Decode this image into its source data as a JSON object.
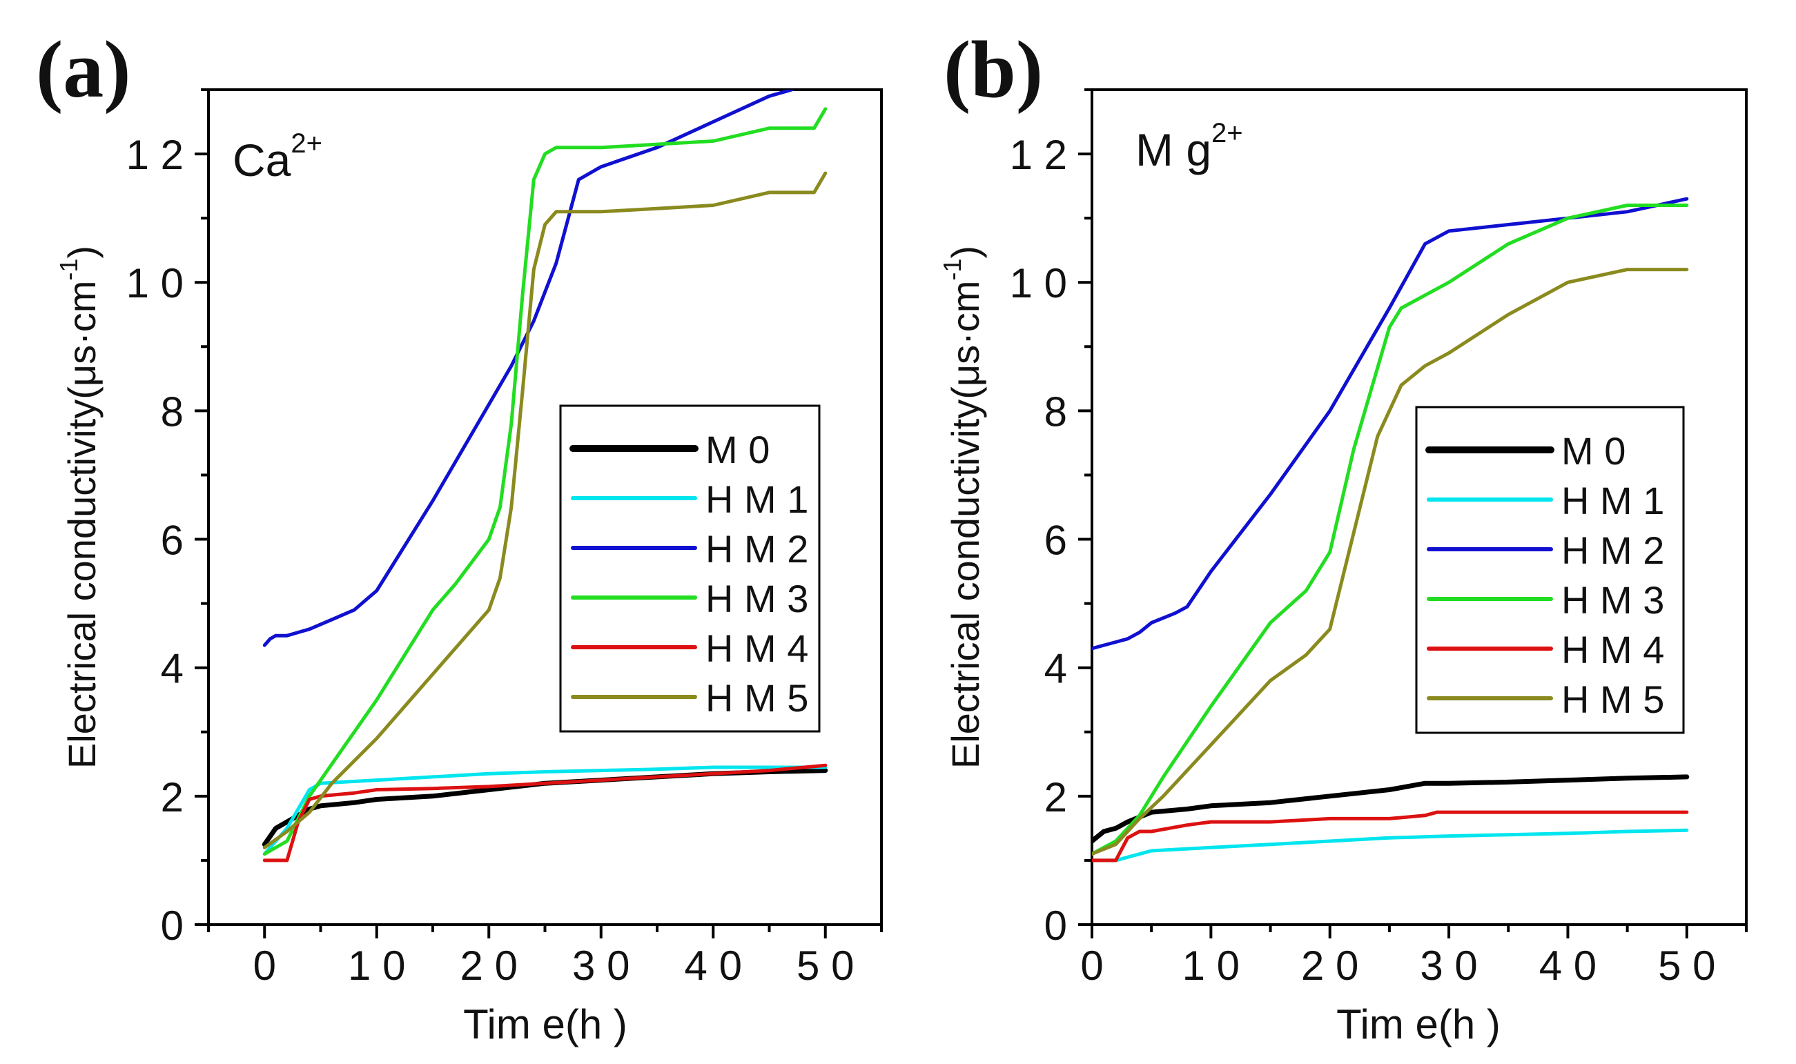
{
  "chart_data": [
    {
      "type": "line",
      "panel_label": "(a)",
      "ion_label": "Ca",
      "ion_superscript": "2+",
      "xlabel": "Tim e(h )",
      "ylabel": "Electrical conductivity(μs·cm",
      "ylabel_superscript": "-1",
      "ylabel_suffix": ")",
      "xlim": [
        -5,
        55
      ],
      "ylim": [
        0,
        13
      ],
      "xticks": [
        0,
        10,
        20,
        30,
        40,
        50
      ],
      "xtick_labels": [
        "0",
        "1 0",
        "2 0",
        "3 0",
        "4 0",
        "5 0"
      ],
      "yticks": [
        0,
        2,
        4,
        6,
        8,
        10,
        12
      ],
      "ytick_labels": [
        "0",
        "2",
        "4",
        "6",
        "8",
        "1 0",
        "1 2"
      ],
      "legend_position": "center-right",
      "series": [
        {
          "name": "M 0",
          "color": "#000000",
          "x": [
            0,
            1,
            2,
            3,
            4,
            5,
            8,
            10,
            15,
            20,
            25,
            30,
            35,
            40,
            45,
            50
          ],
          "y": [
            1.25,
            1.5,
            1.6,
            1.7,
            1.8,
            1.85,
            1.9,
            1.95,
            2.0,
            2.1,
            2.2,
            2.25,
            2.3,
            2.35,
            2.38,
            2.4
          ]
        },
        {
          "name": "H M 1",
          "color": "#00e5ee",
          "x": [
            0,
            1,
            2,
            3,
            4,
            5,
            10,
            15,
            20,
            25,
            30,
            35,
            40,
            45,
            50
          ],
          "y": [
            1.1,
            1.3,
            1.5,
            1.8,
            2.1,
            2.2,
            2.25,
            2.3,
            2.35,
            2.38,
            2.4,
            2.42,
            2.45,
            2.45,
            2.45
          ]
        },
        {
          "name": "H M 2",
          "color": "#1010d0",
          "x": [
            0,
            0.5,
            1,
            2,
            3,
            4,
            6,
            8,
            10,
            15,
            20,
            22,
            24,
            26,
            28,
            30,
            35,
            40,
            45,
            47
          ],
          "y": [
            4.35,
            4.45,
            4.5,
            4.5,
            4.55,
            4.6,
            4.75,
            4.9,
            5.2,
            6.6,
            8.1,
            8.7,
            9.4,
            10.3,
            11.6,
            11.8,
            12.1,
            12.5,
            12.9,
            13.0
          ]
        },
        {
          "name": "H M 3",
          "color": "#22dd22",
          "x": [
            0,
            2,
            4,
            6,
            10,
            15,
            17,
            20,
            21,
            22,
            23,
            24,
            25,
            26,
            30,
            35,
            40,
            45,
            49,
            50
          ],
          "y": [
            1.1,
            1.3,
            2.0,
            2.5,
            3.5,
            4.9,
            5.3,
            6.0,
            6.5,
            7.8,
            9.8,
            11.6,
            12.0,
            12.1,
            12.1,
            12.15,
            12.2,
            12.4,
            12.4,
            12.7
          ]
        },
        {
          "name": "H M 4",
          "color": "#dd1111",
          "x": [
            0,
            1,
            2,
            3,
            4,
            5,
            8,
            10,
            15,
            20,
            25,
            30,
            35,
            40,
            45,
            50
          ],
          "y": [
            1.0,
            1.0,
            1.0,
            1.6,
            1.95,
            2.0,
            2.05,
            2.1,
            2.12,
            2.15,
            2.2,
            2.25,
            2.3,
            2.35,
            2.4,
            2.48
          ]
        },
        {
          "name": "H M 5",
          "color": "#8a8a1f",
          "x": [
            0,
            2,
            4,
            6,
            10,
            15,
            20,
            21,
            22,
            23,
            24,
            25,
            26,
            30,
            35,
            40,
            45,
            49,
            50
          ],
          "y": [
            1.2,
            1.45,
            1.75,
            2.2,
            2.9,
            3.9,
            4.9,
            5.4,
            6.5,
            8.3,
            10.2,
            10.9,
            11.1,
            11.1,
            11.15,
            11.2,
            11.4,
            11.4,
            11.7
          ]
        }
      ]
    },
    {
      "type": "line",
      "panel_label": "(b)",
      "ion_label": "M g",
      "ion_superscript": "2+",
      "xlabel": "Tim e(h )",
      "ylabel": "Electrical conductivity(μs·cm",
      "ylabel_superscript": "-1",
      "ylabel_suffix": ")",
      "xlim": [
        0,
        55
      ],
      "ylim": [
        0,
        13
      ],
      "xticks": [
        0,
        10,
        20,
        30,
        40,
        50
      ],
      "xtick_labels": [
        "0",
        "1 0",
        "2 0",
        "3 0",
        "4 0",
        "5 0"
      ],
      "yticks": [
        0,
        2,
        4,
        6,
        8,
        10,
        12
      ],
      "ytick_labels": [
        "0",
        "2",
        "4",
        "6",
        "8",
        "1 0",
        "1 2"
      ],
      "legend_position": "center-right",
      "series": [
        {
          "name": "M 0",
          "color": "#000000",
          "x": [
            0,
            1,
            2,
            3,
            5,
            8,
            10,
            15,
            20,
            25,
            28,
            30,
            35,
            40,
            45,
            50
          ],
          "y": [
            1.3,
            1.45,
            1.5,
            1.6,
            1.75,
            1.8,
            1.85,
            1.9,
            2.0,
            2.1,
            2.2,
            2.2,
            2.22,
            2.25,
            2.28,
            2.3
          ]
        },
        {
          "name": "H M 1",
          "color": "#00e5ee",
          "x": [
            0,
            1,
            2,
            3,
            5,
            10,
            15,
            20,
            25,
            30,
            35,
            40,
            45,
            50
          ],
          "y": [
            1.0,
            1.0,
            1.0,
            1.05,
            1.15,
            1.2,
            1.25,
            1.3,
            1.35,
            1.38,
            1.4,
            1.42,
            1.45,
            1.47
          ]
        },
        {
          "name": "H M 2",
          "color": "#1010d0",
          "x": [
            0,
            1,
            2,
            3,
            4,
            5,
            7,
            8,
            10,
            15,
            20,
            25,
            28,
            30,
            35,
            40,
            45,
            50
          ],
          "y": [
            4.3,
            4.35,
            4.4,
            4.45,
            4.55,
            4.7,
            4.85,
            4.95,
            5.5,
            6.7,
            8.0,
            9.6,
            10.6,
            10.8,
            10.9,
            11.0,
            11.1,
            11.3
          ]
        },
        {
          "name": "H M 3",
          "color": "#22dd22",
          "x": [
            0,
            2,
            4,
            6,
            10,
            15,
            18,
            20,
            22,
            25,
            26,
            28,
            30,
            35,
            40,
            45,
            50
          ],
          "y": [
            1.1,
            1.3,
            1.7,
            2.3,
            3.4,
            4.7,
            5.2,
            5.8,
            7.4,
            9.3,
            9.6,
            9.8,
            10.0,
            10.6,
            11.0,
            11.2,
            11.2
          ]
        },
        {
          "name": "H M 4",
          "color": "#dd1111",
          "x": [
            0,
            1,
            2,
            3,
            4,
            5,
            8,
            10,
            15,
            20,
            25,
            28,
            29,
            30,
            35,
            40,
            45,
            50
          ],
          "y": [
            1.0,
            1.0,
            1.0,
            1.35,
            1.45,
            1.45,
            1.55,
            1.6,
            1.6,
            1.65,
            1.65,
            1.7,
            1.75,
            1.75,
            1.75,
            1.75,
            1.75,
            1.75
          ]
        },
        {
          "name": "H M 5",
          "color": "#8a8a1f",
          "x": [
            0,
            2,
            4,
            6,
            10,
            15,
            18,
            20,
            22,
            24,
            26,
            28,
            30,
            35,
            40,
            45,
            50
          ],
          "y": [
            1.1,
            1.25,
            1.65,
            2.0,
            2.8,
            3.8,
            4.2,
            4.6,
            6.1,
            7.6,
            8.4,
            8.7,
            8.9,
            9.5,
            10.0,
            10.2,
            10.2
          ]
        }
      ]
    }
  ]
}
